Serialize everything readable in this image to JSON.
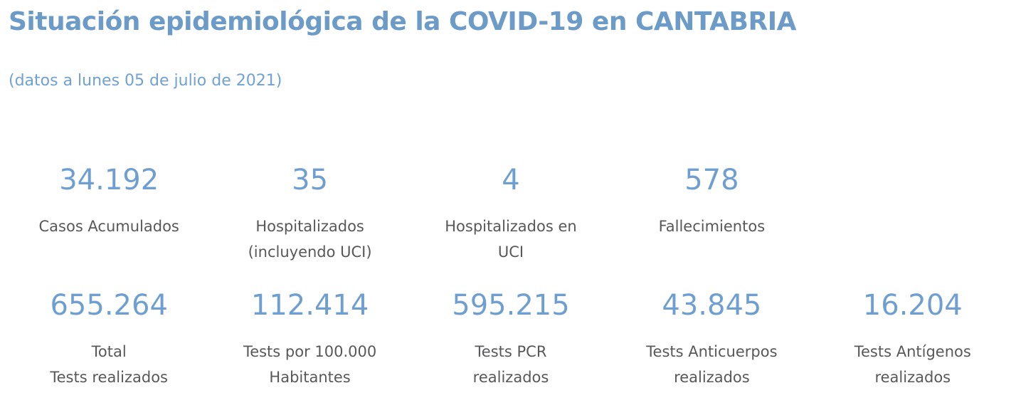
{
  "page": {
    "title": "Situación epidemiológica de la COVID-19 en CANTABRIA",
    "subtitle": "(datos a lunes 05 de julio de 2021)"
  },
  "colors": {
    "title_blue": "#6d9bc8",
    "subtitle_blue": "#71a1d3",
    "value_blue": "#6f9fd1",
    "label_gray": "#58585a",
    "background": "#ffffff"
  },
  "stats": {
    "rows": [
      {
        "cells": [
          {
            "value": "34.192",
            "label_lines": [
              "Casos Acumulados"
            ]
          },
          {
            "value": "35",
            "label_lines": [
              "Hospitalizados",
              "(incluyendo UCI)"
            ]
          },
          {
            "value": "4",
            "label_lines": [
              "Hospitalizados en",
              "UCI"
            ]
          },
          {
            "value": "578",
            "label_lines": [
              "Fallecimientos"
            ]
          }
        ]
      },
      {
        "cells": [
          {
            "value": "655.264",
            "label_lines": [
              "Total",
              "Tests realizados"
            ]
          },
          {
            "value": "112.414",
            "label_lines": [
              "Tests por 100.000",
              "Habitantes"
            ]
          },
          {
            "value": "595.215",
            "label_lines": [
              "Tests PCR",
              "realizados"
            ]
          },
          {
            "value": "43.845",
            "label_lines": [
              "Tests Anticuerpos",
              "realizados"
            ]
          },
          {
            "value": "16.204",
            "label_lines": [
              "Tests Antígenos",
              "realizados"
            ]
          }
        ]
      }
    ]
  }
}
